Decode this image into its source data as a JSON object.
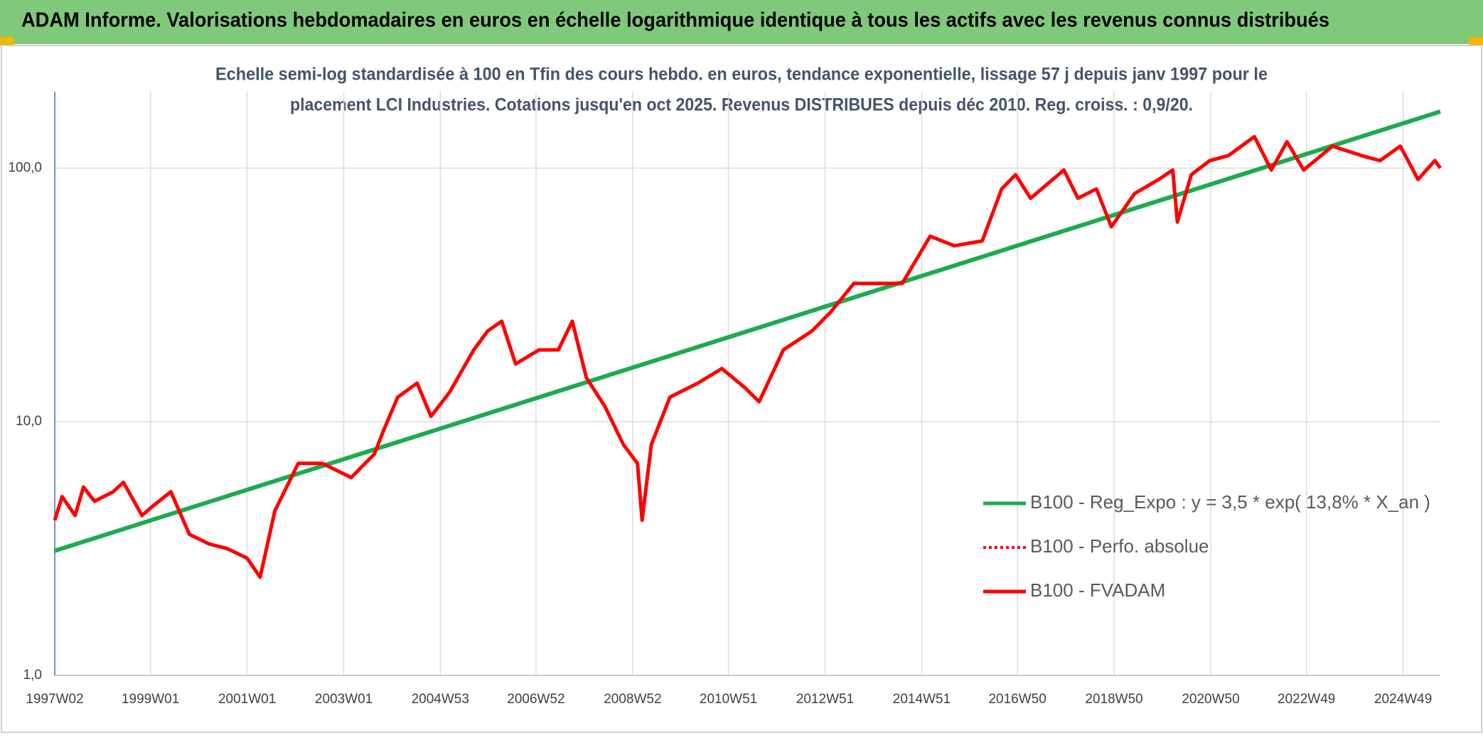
{
  "header": {
    "title": "ADAM Informe. Valorisations hebdomadaires en euros en échelle logarithmique identique à tous les actifs avec les revenus connus distribués"
  },
  "chart_data": {
    "type": "line",
    "title": [
      "Echelle semi-log standardisée à 100 en Tfin des cours hebdo. en euros, tendance exponentielle, lissage 57 j depuis janv 1997 pour le",
      "placement LCI Industries. Cotations jusqu'en oct 2025. Revenus DISTRIBUES depuis déc 2010. Reg. croiss. : 0,9/20."
    ],
    "log_y": true,
    "grid": true,
    "legend": "bottom-right",
    "xlim": [
      "1997W02",
      "2025W37"
    ],
    "xticks": [
      "1997W02",
      "1999W01",
      "2001W01",
      "2003W01",
      "2004W53",
      "2006W52",
      "2008W52",
      "2010W51",
      "2012W51",
      "2014W51",
      "2016W50",
      "2018W50",
      "2020W50",
      "2022W49",
      "2024W49"
    ],
    "ylim": [
      1,
      200
    ],
    "yticks": [
      {
        "value": 1,
        "label": "1,0"
      },
      {
        "value": 10,
        "label": "10,0"
      },
      {
        "value": 100,
        "label": "100,0"
      }
    ],
    "series": [
      {
        "name": "B100 - Reg_Expo : y = 3,5 * exp( 13,8% *  X_an )",
        "color": "#1faa50",
        "style": "solid",
        "x": [
          "1997W02",
          "2025W37"
        ],
        "values": [
          3.1,
          167
        ]
      },
      {
        "name": "B100 - Perfo. absolue",
        "color": "#ff0000",
        "style": "dotted"
      },
      {
        "name": "B100 - FVADAM",
        "color": "#ff0000",
        "style": "solid",
        "x": [
          "1997W02",
          "1997W10",
          "1997W24",
          "1997W33",
          "1997W45",
          "1998W13",
          "1998W24",
          "1998W44",
          "1999W02",
          "1999W23",
          "1999W43",
          "2000W12",
          "2000W32",
          "2001W01",
          "2001W15",
          "2001W31",
          "2002W04",
          "2002W30",
          "2003W09",
          "2003W34",
          "2003W44",
          "2004W07",
          "2004W28",
          "2004W43",
          "2005W11",
          "2005W37",
          "2005W52",
          "2006W15",
          "2006W30",
          "2007W03",
          "2007W24",
          "2007W39",
          "2008W02",
          "2008W22",
          "2008W42",
          "2009W05",
          "2009W10",
          "2009W20",
          "2009W40",
          "2010W18",
          "2010W44",
          "2011W17",
          "2011W32",
          "2012W06",
          "2012W37",
          "2013W05",
          "2013W30",
          "2014W09",
          "2014W30",
          "2015W08",
          "2015W34",
          "2016W12",
          "2016W33",
          "2016W48",
          "2017W12",
          "2017W48",
          "2018W11",
          "2018W31",
          "2018W47",
          "2019W20",
          "2019W46",
          "2020W09",
          "2020W14",
          "2020W29",
          "2020W49",
          "2021W17",
          "2021W45",
          "2022W11",
          "2022W28",
          "2022W46",
          "2023W25",
          "2024W04",
          "2024W24",
          "2024W46",
          "2025W13",
          "2025W31",
          "2025W37"
        ],
        "values": [
          4.09,
          5.07,
          4.27,
          5.53,
          4.86,
          5.3,
          5.77,
          4.27,
          4.6,
          5.3,
          3.6,
          3.3,
          3.16,
          2.9,
          2.44,
          4.46,
          6.85,
          6.85,
          6.03,
          7.46,
          9.25,
          12.5,
          14.2,
          10.5,
          13.1,
          19.2,
          22.8,
          24.9,
          16.9,
          19.2,
          19.2,
          24.9,
          14.9,
          11.5,
          8.13,
          6.85,
          4.09,
          8.13,
          12.5,
          14.2,
          16.2,
          13.6,
          12.0,
          19.2,
          22.8,
          27.1,
          35.1,
          35.1,
          35.1,
          53.9,
          49.4,
          51.6,
          82.8,
          94.2,
          76.0,
          98.3,
          76.0,
          82.8,
          58.7,
          79.4,
          90.2,
          98.3,
          61.3,
          94.2,
          107,
          112,
          133,
          98.3,
          127,
          98.3,
          122,
          112,
          107,
          122,
          90.2,
          107,
          100
        ]
      }
    ]
  }
}
